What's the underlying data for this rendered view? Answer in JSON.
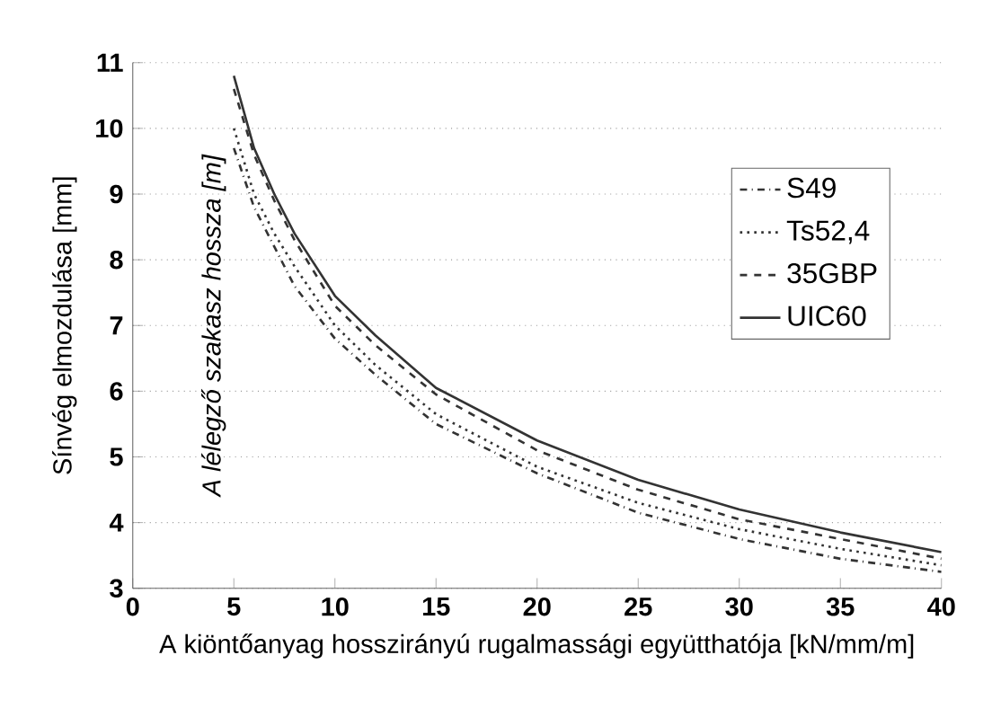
{
  "chart_data": {
    "type": "line",
    "xlabel": "A kiöntőanyag hosszirányú rugalmassági együtthatója [kN/mm/m]",
    "ylabel": "Sínvég elmozdulása [mm]",
    "annotations": [
      "A lélegző szakasz hossza [m]"
    ],
    "x": [
      5,
      6,
      7,
      8,
      10,
      12,
      15,
      20,
      25,
      30,
      35,
      40
    ],
    "series": [
      {
        "name": "S49",
        "color": "#333333",
        "line_style": "dashdot",
        "values": [
          9.7,
          8.8,
          8.2,
          7.6,
          6.8,
          6.25,
          5.5,
          4.75,
          4.15,
          3.75,
          3.45,
          3.25
        ]
      },
      {
        "name": "Ts52,4",
        "color": "#333333",
        "line_style": "dotted",
        "values": [
          10.0,
          9.0,
          8.4,
          7.9,
          7.0,
          6.4,
          5.65,
          4.85,
          4.3,
          3.9,
          3.6,
          3.35
        ]
      },
      {
        "name": "35GBP",
        "color": "#333333",
        "line_style": "dashed",
        "values": [
          10.6,
          9.6,
          8.9,
          8.3,
          7.3,
          6.7,
          5.95,
          5.1,
          4.5,
          4.05,
          3.75,
          3.45
        ]
      },
      {
        "name": "UIC60",
        "color": "#333333",
        "line_style": "solid",
        "values": [
          10.8,
          9.7,
          9.0,
          8.4,
          7.45,
          6.85,
          6.05,
          5.25,
          4.65,
          4.2,
          3.85,
          3.55
        ]
      }
    ],
    "xlim": [
      0,
      40
    ],
    "ylim": [
      3,
      11
    ],
    "xticks": [
      0,
      5,
      10,
      15,
      20,
      25,
      30,
      35,
      40
    ],
    "yticks": [
      3,
      4,
      5,
      6,
      7,
      8,
      9,
      10,
      11
    ],
    "grid": "y",
    "legend": "right"
  }
}
